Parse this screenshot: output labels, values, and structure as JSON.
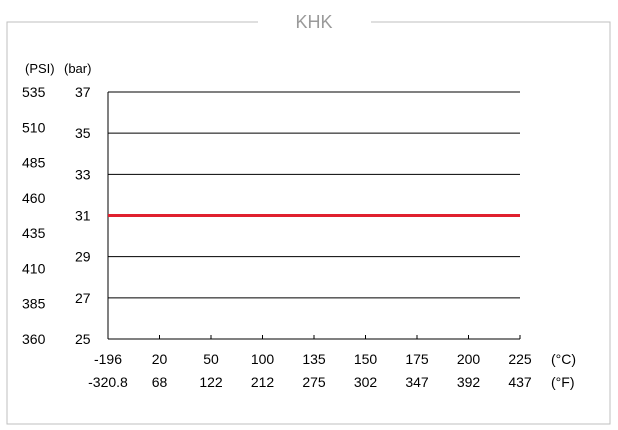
{
  "chart_data": {
    "type": "line",
    "title": "KHK",
    "bar_unit_label": "(bar)",
    "psi_unit_label": "(PSI)",
    "celsius_unit_label": "(°C)",
    "fahrenheit_unit_label": "(°F)",
    "x_categories_c": [
      "-196",
      "20",
      "50",
      "100",
      "135",
      "150",
      "175",
      "200",
      "225"
    ],
    "x_categories_f": [
      "-320.8",
      "68",
      "122",
      "212",
      "275",
      "302",
      "347",
      "392",
      "437"
    ],
    "y_ticks_bar": [
      "37",
      "35",
      "33",
      "31",
      "29",
      "27",
      "25"
    ],
    "y_ticks_psi": [
      "535",
      "510",
      "485",
      "460",
      "435",
      "410",
      "385",
      "360"
    ],
    "ylim_bar": [
      25,
      37
    ],
    "ylim_psi": [
      360,
      535
    ],
    "grid": true,
    "series": [
      {
        "values": [
          31,
          31,
          31,
          31,
          31,
          31,
          31,
          31,
          31
        ],
        "color": "#e0202e"
      }
    ]
  },
  "colors": {
    "frame": "#bfbfbf",
    "title": "#9a9a9a",
    "axis": "#000000",
    "text": "#000000"
  }
}
